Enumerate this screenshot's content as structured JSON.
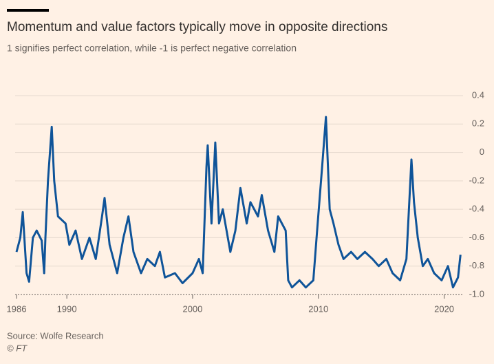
{
  "chart_data": {
    "type": "line",
    "title": "Momentum and value factors typically move in opposite directions",
    "subtitle": "1 signifies perfect correlation, while -1 is perfect negative correlation",
    "source": "Source: Wolfe Research",
    "credit": "© FT",
    "x": [
      1986.0,
      1986.3,
      1986.5,
      1986.8,
      1987.0,
      1987.3,
      1987.6,
      1988.0,
      1988.2,
      1988.3,
      1988.5,
      1988.8,
      1989.0,
      1989.3,
      1989.9,
      1990.2,
      1990.7,
      1991.2,
      1991.8,
      1992.3,
      1992.8,
      1993.0,
      1993.4,
      1994.0,
      1994.5,
      1994.9,
      1995.3,
      1995.9,
      1996.4,
      1997.0,
      1997.4,
      1997.8,
      1998.6,
      1999.2,
      2000.0,
      2000.5,
      2000.8,
      2001.1,
      2001.2,
      2001.5,
      2001.8,
      2002.1,
      2002.4,
      2003.0,
      2003.4,
      2003.8,
      2004.3,
      2004.6,
      2005.2,
      2005.5,
      2006.0,
      2006.5,
      2006.8,
      2007.4,
      2007.6,
      2007.9,
      2008.5,
      2009.0,
      2009.6,
      2009.9,
      2010.3,
      2010.6,
      2010.9,
      2011.2,
      2011.6,
      2012.0,
      2012.6,
      2013.1,
      2013.7,
      2014.3,
      2014.8,
      2015.4,
      2015.9,
      2016.5,
      2017.0,
      2017.4,
      2017.6,
      2017.9,
      2018.3,
      2018.7,
      2019.2,
      2019.8,
      2020.3,
      2020.7,
      2021.1,
      2021.3
    ],
    "series": [
      {
        "name": "Correlation",
        "color": "#0f5499",
        "values": [
          -0.7,
          -0.6,
          -0.42,
          -0.85,
          -0.91,
          -0.6,
          -0.55,
          -0.62,
          -0.85,
          -0.6,
          -0.2,
          0.18,
          -0.2,
          -0.45,
          -0.5,
          -0.65,
          -0.55,
          -0.75,
          -0.6,
          -0.75,
          -0.45,
          -0.32,
          -0.65,
          -0.85,
          -0.6,
          -0.45,
          -0.7,
          -0.85,
          -0.75,
          -0.8,
          -0.7,
          -0.88,
          -0.85,
          -0.92,
          -0.85,
          -0.75,
          -0.85,
          -0.1,
          0.05,
          -0.5,
          0.07,
          -0.5,
          -0.4,
          -0.7,
          -0.55,
          -0.25,
          -0.5,
          -0.35,
          -0.45,
          -0.3,
          -0.55,
          -0.7,
          -0.45,
          -0.55,
          -0.9,
          -0.95,
          -0.9,
          -0.95,
          -0.9,
          -0.55,
          -0.1,
          0.25,
          -0.4,
          -0.5,
          -0.65,
          -0.75,
          -0.7,
          -0.75,
          -0.7,
          -0.75,
          -0.8,
          -0.75,
          -0.85,
          -0.9,
          -0.75,
          -0.05,
          -0.35,
          -0.6,
          -0.8,
          -0.75,
          -0.85,
          -0.9,
          -0.8,
          -0.95,
          -0.88,
          -0.72
        ]
      }
    ],
    "xlim": [
      1986,
      2021.5
    ],
    "xticks": [
      1986,
      1990,
      2000,
      2010,
      2020
    ],
    "ylim": [
      -1.0,
      0.4
    ],
    "yticks": [
      {
        "value": -1.0,
        "label": "-1.0"
      },
      -0.8,
      -0.6,
      -0.4,
      -0.2,
      0,
      0.2,
      0.4
    ],
    "grid": true
  }
}
